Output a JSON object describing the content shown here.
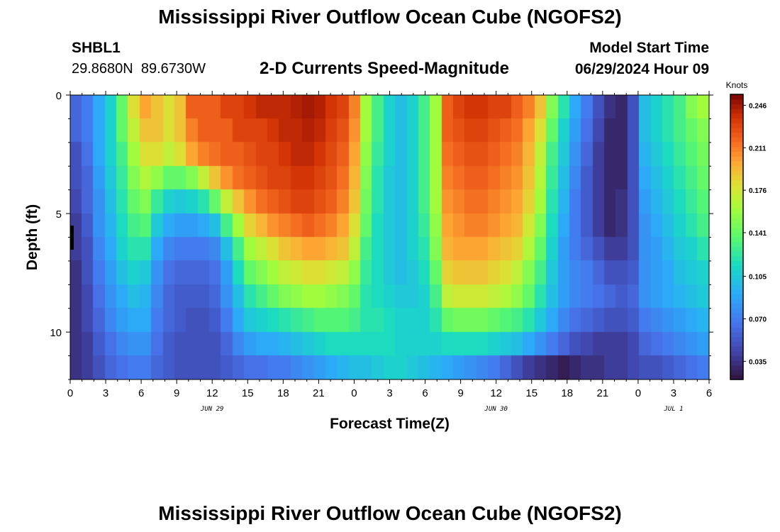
{
  "chart_data": {
    "type": "heatmap",
    "title": "Mississippi River Outflow Ocean Cube (NGOFS2)",
    "subtitle": "2-D Currents Speed-Magnitude",
    "station": {
      "id": "SHBL1",
      "location": "29.8680N  89.6730W"
    },
    "model_start": {
      "label": "Model Start Time",
      "value": "06/29/2024 Hour 09"
    },
    "xlabel": "Forecast Time(Z)",
    "ylabel": "Depth (ft)",
    "x_ticks": [
      "0",
      "3",
      "6",
      "9",
      "12",
      "15",
      "18",
      "21",
      "0",
      "3",
      "6",
      "9",
      "12",
      "15",
      "18",
      "21",
      "0",
      "3",
      "6"
    ],
    "x_range_hours": [
      0,
      54
    ],
    "date_labels": [
      {
        "label": "JUN 29",
        "hour": 12
      },
      {
        "label": "JUN 30",
        "hour": 36
      },
      {
        "label": "JUL 1",
        "hour": 51
      }
    ],
    "y_ticks": [
      "0",
      "5",
      "10"
    ],
    "y_range_ft": [
      0,
      12
    ],
    "colorbar": {
      "unit": "Knots",
      "ticks": [
        "0.246",
        "0.211",
        "0.176",
        "0.141",
        "0.105",
        "0.070",
        "0.035"
      ],
      "min": 0.02,
      "max": 0.255
    },
    "time_keys": [
      0,
      1,
      2,
      3,
      4,
      5,
      6,
      7,
      8,
      9,
      10,
      11,
      12,
      13,
      14,
      15,
      16,
      17,
      18,
      19,
      20,
      21,
      22,
      23,
      24,
      25,
      26,
      27,
      28,
      29,
      30,
      31,
      32,
      33,
      34,
      35,
      36,
      37,
      38,
      39,
      40,
      41,
      42,
      43,
      44,
      45,
      46,
      47,
      48,
      49,
      50,
      51,
      52,
      53,
      54
    ],
    "depth_levels_ft": [
      0.5,
      1.5,
      2.5,
      3.5,
      4.5,
      5.5,
      6.5,
      7.5,
      8.5,
      9.5,
      10.5,
      11.5
    ],
    "speed_knots": [
      [
        0.06,
        0.07,
        0.09,
        0.11,
        0.14,
        0.18,
        0.2,
        0.19,
        0.18,
        0.19,
        0.22,
        0.22,
        0.22,
        0.23,
        0.23,
        0.235,
        0.24,
        0.24,
        0.24,
        0.243,
        0.246,
        0.243,
        0.235,
        0.23,
        0.21,
        0.16,
        0.13,
        0.11,
        0.1,
        0.11,
        0.13,
        0.16,
        0.22,
        0.23,
        0.235,
        0.235,
        0.23,
        0.23,
        0.22,
        0.21,
        0.19,
        0.15,
        0.12,
        0.09,
        0.07,
        0.05,
        0.035,
        0.03,
        0.05,
        0.1,
        0.11,
        0.12,
        0.13,
        0.15,
        0.16
      ],
      [
        0.06,
        0.07,
        0.09,
        0.11,
        0.14,
        0.17,
        0.19,
        0.19,
        0.18,
        0.19,
        0.21,
        0.22,
        0.22,
        0.22,
        0.23,
        0.23,
        0.23,
        0.235,
        0.24,
        0.24,
        0.243,
        0.24,
        0.232,
        0.225,
        0.205,
        0.16,
        0.13,
        0.11,
        0.1,
        0.11,
        0.13,
        0.16,
        0.22,
        0.225,
        0.23,
        0.23,
        0.225,
        0.22,
        0.215,
        0.2,
        0.18,
        0.14,
        0.11,
        0.085,
        0.065,
        0.045,
        0.03,
        0.03,
        0.05,
        0.1,
        0.11,
        0.12,
        0.13,
        0.14,
        0.15
      ],
      [
        0.05,
        0.065,
        0.09,
        0.11,
        0.13,
        0.16,
        0.18,
        0.18,
        0.17,
        0.18,
        0.2,
        0.21,
        0.215,
        0.22,
        0.22,
        0.225,
        0.23,
        0.23,
        0.235,
        0.24,
        0.24,
        0.235,
        0.228,
        0.22,
        0.2,
        0.155,
        0.125,
        0.11,
        0.1,
        0.11,
        0.13,
        0.16,
        0.215,
        0.22,
        0.225,
        0.225,
        0.22,
        0.215,
        0.21,
        0.195,
        0.17,
        0.13,
        0.105,
        0.08,
        0.06,
        0.04,
        0.03,
        0.03,
        0.05,
        0.095,
        0.105,
        0.115,
        0.125,
        0.135,
        0.145
      ],
      [
        0.05,
        0.06,
        0.085,
        0.105,
        0.125,
        0.15,
        0.165,
        0.155,
        0.14,
        0.14,
        0.15,
        0.17,
        0.19,
        0.205,
        0.215,
        0.22,
        0.225,
        0.23,
        0.23,
        0.235,
        0.235,
        0.23,
        0.225,
        0.215,
        0.195,
        0.15,
        0.12,
        0.105,
        0.1,
        0.11,
        0.13,
        0.16,
        0.21,
        0.215,
        0.22,
        0.22,
        0.215,
        0.21,
        0.205,
        0.19,
        0.165,
        0.125,
        0.1,
        0.075,
        0.055,
        0.04,
        0.03,
        0.03,
        0.05,
        0.09,
        0.1,
        0.11,
        0.12,
        0.13,
        0.14
      ],
      [
        0.045,
        0.06,
        0.08,
        0.1,
        0.12,
        0.14,
        0.15,
        0.125,
        0.11,
        0.105,
        0.11,
        0.12,
        0.14,
        0.17,
        0.19,
        0.205,
        0.215,
        0.22,
        0.225,
        0.23,
        0.23,
        0.225,
        0.22,
        0.21,
        0.19,
        0.145,
        0.12,
        0.105,
        0.1,
        0.11,
        0.13,
        0.16,
        0.205,
        0.21,
        0.215,
        0.215,
        0.21,
        0.205,
        0.2,
        0.185,
        0.16,
        0.12,
        0.095,
        0.07,
        0.055,
        0.04,
        0.03,
        0.035,
        0.05,
        0.085,
        0.095,
        0.105,
        0.115,
        0.125,
        0.135
      ],
      [
        0.04,
        0.055,
        0.08,
        0.095,
        0.115,
        0.13,
        0.135,
        0.105,
        0.09,
        0.085,
        0.085,
        0.09,
        0.1,
        0.13,
        0.16,
        0.185,
        0.195,
        0.205,
        0.21,
        0.215,
        0.22,
        0.215,
        0.21,
        0.2,
        0.18,
        0.14,
        0.115,
        0.105,
        0.1,
        0.11,
        0.125,
        0.155,
        0.2,
        0.205,
        0.21,
        0.21,
        0.205,
        0.2,
        0.195,
        0.175,
        0.15,
        0.115,
        0.09,
        0.07,
        0.055,
        0.04,
        0.03,
        0.035,
        0.05,
        0.08,
        0.09,
        0.1,
        0.11,
        0.12,
        0.13
      ],
      [
        0.04,
        0.05,
        0.075,
        0.09,
        0.11,
        0.12,
        0.12,
        0.09,
        0.075,
        0.07,
        0.07,
        0.07,
        0.075,
        0.1,
        0.13,
        0.16,
        0.17,
        0.18,
        0.19,
        0.195,
        0.2,
        0.2,
        0.195,
        0.19,
        0.17,
        0.13,
        0.115,
        0.105,
        0.1,
        0.11,
        0.12,
        0.15,
        0.195,
        0.2,
        0.2,
        0.2,
        0.195,
        0.19,
        0.185,
        0.165,
        0.14,
        0.11,
        0.085,
        0.07,
        0.06,
        0.05,
        0.04,
        0.04,
        0.05,
        0.08,
        0.085,
        0.095,
        0.105,
        0.11,
        0.12
      ],
      [
        0.035,
        0.05,
        0.07,
        0.085,
        0.1,
        0.11,
        0.105,
        0.08,
        0.065,
        0.06,
        0.06,
        0.06,
        0.065,
        0.085,
        0.115,
        0.14,
        0.15,
        0.16,
        0.17,
        0.175,
        0.18,
        0.18,
        0.175,
        0.17,
        0.155,
        0.125,
        0.115,
        0.105,
        0.1,
        0.105,
        0.115,
        0.14,
        0.185,
        0.19,
        0.19,
        0.19,
        0.185,
        0.18,
        0.17,
        0.15,
        0.13,
        0.105,
        0.085,
        0.075,
        0.07,
        0.06,
        0.05,
        0.05,
        0.055,
        0.08,
        0.085,
        0.09,
        0.1,
        0.105,
        0.11
      ],
      [
        0.035,
        0.045,
        0.065,
        0.08,
        0.09,
        0.1,
        0.095,
        0.075,
        0.06,
        0.055,
        0.055,
        0.055,
        0.06,
        0.08,
        0.1,
        0.12,
        0.13,
        0.14,
        0.15,
        0.155,
        0.16,
        0.16,
        0.155,
        0.15,
        0.14,
        0.12,
        0.115,
        0.11,
        0.105,
        0.105,
        0.11,
        0.13,
        0.17,
        0.175,
        0.175,
        0.175,
        0.17,
        0.165,
        0.155,
        0.14,
        0.12,
        0.1,
        0.085,
        0.075,
        0.07,
        0.065,
        0.06,
        0.055,
        0.06,
        0.08,
        0.085,
        0.09,
        0.095,
        0.1,
        0.105
      ],
      [
        0.035,
        0.045,
        0.06,
        0.075,
        0.085,
        0.09,
        0.09,
        0.07,
        0.06,
        0.055,
        0.05,
        0.05,
        0.055,
        0.07,
        0.09,
        0.105,
        0.11,
        0.115,
        0.12,
        0.125,
        0.13,
        0.135,
        0.135,
        0.135,
        0.13,
        0.12,
        0.12,
        0.115,
        0.11,
        0.11,
        0.11,
        0.12,
        0.14,
        0.145,
        0.145,
        0.145,
        0.14,
        0.135,
        0.13,
        0.12,
        0.105,
        0.09,
        0.075,
        0.065,
        0.06,
        0.055,
        0.05,
        0.05,
        0.055,
        0.07,
        0.075,
        0.08,
        0.085,
        0.09,
        0.095
      ],
      [
        0.035,
        0.04,
        0.055,
        0.065,
        0.075,
        0.08,
        0.08,
        0.065,
        0.055,
        0.05,
        0.05,
        0.05,
        0.05,
        0.06,
        0.075,
        0.085,
        0.09,
        0.09,
        0.095,
        0.1,
        0.105,
        0.11,
        0.115,
        0.115,
        0.115,
        0.115,
        0.115,
        0.115,
        0.11,
        0.11,
        0.11,
        0.11,
        0.115,
        0.115,
        0.115,
        0.115,
        0.11,
        0.105,
        0.1,
        0.09,
        0.08,
        0.07,
        0.06,
        0.05,
        0.045,
        0.04,
        0.04,
        0.04,
        0.045,
        0.06,
        0.065,
        0.07,
        0.075,
        0.08,
        0.085
      ],
      [
        0.035,
        0.04,
        0.05,
        0.06,
        0.065,
        0.07,
        0.07,
        0.06,
        0.055,
        0.05,
        0.05,
        0.05,
        0.05,
        0.055,
        0.06,
        0.065,
        0.065,
        0.07,
        0.07,
        0.075,
        0.08,
        0.085,
        0.09,
        0.095,
        0.1,
        0.1,
        0.105,
        0.11,
        0.11,
        0.105,
        0.1,
        0.095,
        0.09,
        0.085,
        0.08,
        0.075,
        0.07,
        0.06,
        0.05,
        0.04,
        0.035,
        0.03,
        0.025,
        0.03,
        0.035,
        0.035,
        0.04,
        0.04,
        0.045,
        0.05,
        0.05,
        0.055,
        0.06,
        0.065,
        0.07
      ]
    ]
  }
}
